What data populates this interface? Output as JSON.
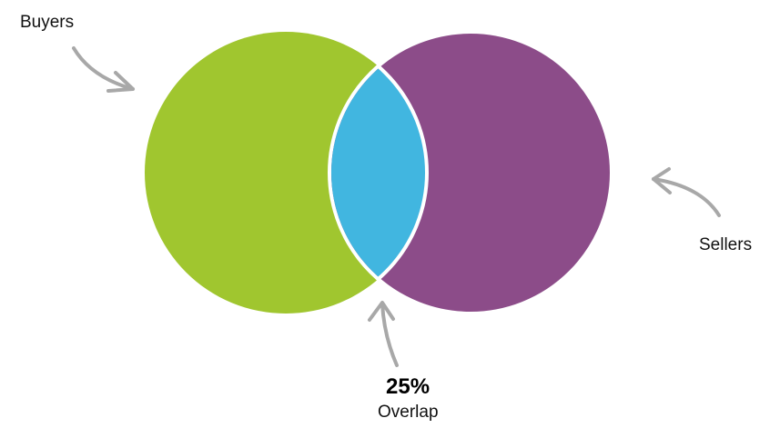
{
  "sets": [
    {
      "label": "Buyers",
      "color": "#a0c62f"
    },
    {
      "label": "Sellers",
      "color": "#8c4c89"
    }
  ],
  "overlap": {
    "value": "25%",
    "label": "Overlap",
    "color": "#41b6e0"
  },
  "arrow_color": "#a8a8a8"
}
